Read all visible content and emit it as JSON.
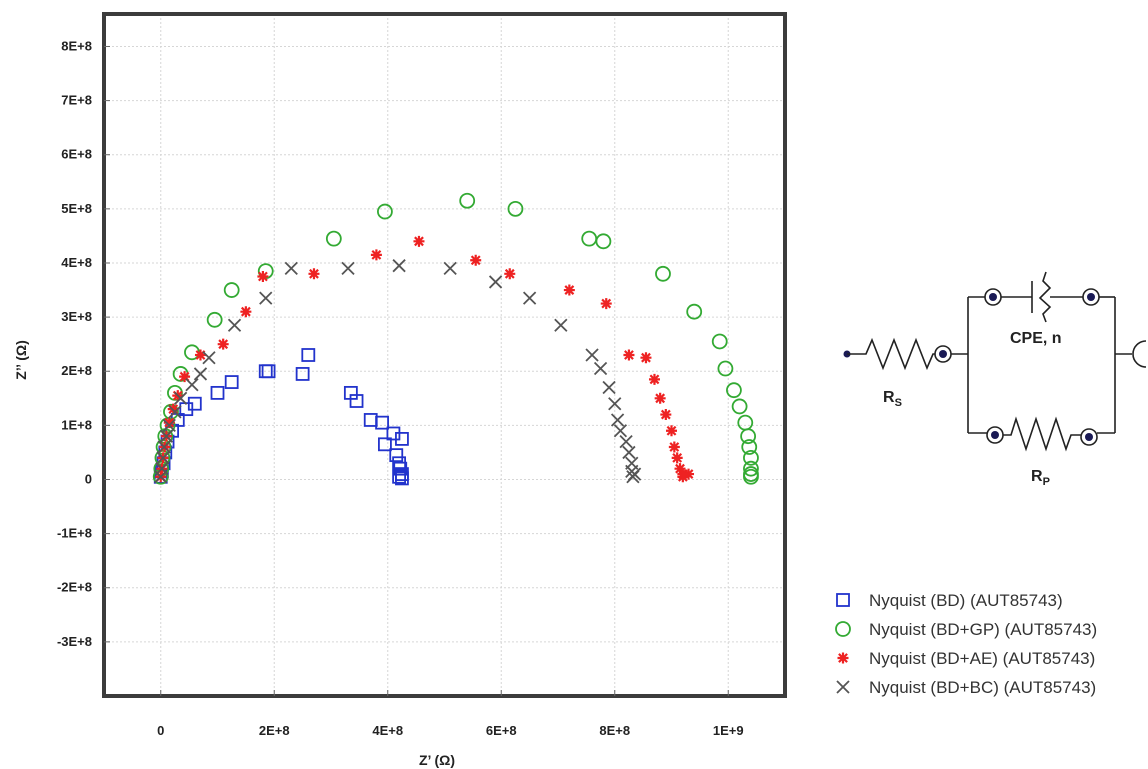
{
  "chart_data": {
    "type": "scatter",
    "xlabel": "Z’ (Ω)",
    "ylabel": "Z’’ (Ω)",
    "xlim": [
      -100000000.0,
      1100000000.0
    ],
    "ylim": [
      -400000000.0,
      860000000.0
    ],
    "x_ticks": [
      {
        "value": 0,
        "label": "0"
      },
      {
        "value": 200000000,
        "label": "2E+8"
      },
      {
        "value": 400000000,
        "label": "4E+8"
      },
      {
        "value": 600000000,
        "label": "6E+8"
      },
      {
        "value": 800000000,
        "label": "8E+8"
      },
      {
        "value": 1000000000,
        "label": "1E+9"
      }
    ],
    "y_ticks": [
      {
        "value": 800000000,
        "label": "8E+8"
      },
      {
        "value": 700000000,
        "label": "7E+8"
      },
      {
        "value": 600000000,
        "label": "6E+8"
      },
      {
        "value": 500000000,
        "label": "5E+8"
      },
      {
        "value": 400000000,
        "label": "4E+8"
      },
      {
        "value": 300000000,
        "label": "3E+8"
      },
      {
        "value": 200000000,
        "label": "2E+8"
      },
      {
        "value": 100000000,
        "label": "1E+8"
      },
      {
        "value": 0,
        "label": "0"
      },
      {
        "value": -100000000,
        "label": "-1E+8"
      },
      {
        "value": -200000000,
        "label": "-2E+8"
      },
      {
        "value": -300000000,
        "label": "-3E+8"
      }
    ],
    "grid": true,
    "legend_position": "bottom-right",
    "series": [
      {
        "name": "Nyquist (BD) (AUT85743)",
        "marker": "square",
        "color": "#2233cc",
        "points": [
          [
            0,
            5000000.0
          ],
          [
            2000000.0,
            15000000.0
          ],
          [
            5000000.0,
            30000000.0
          ],
          [
            8000000.0,
            50000000.0
          ],
          [
            12000000.0,
            70000000.0
          ],
          [
            20000000.0,
            90000000.0
          ],
          [
            30000000.0,
            110000000.0
          ],
          [
            45000000.0,
            130000000.0
          ],
          [
            60000000.0,
            140000000.0
          ],
          [
            100000000.0,
            160000000.0
          ],
          [
            125000000.0,
            180000000.0
          ],
          [
            190000000.0,
            200000000.0
          ],
          [
            185000000.0,
            200000000.0
          ],
          [
            250000000.0,
            195000000.0
          ],
          [
            260000000.0,
            230000000.0
          ],
          [
            335000000.0,
            160000000.0
          ],
          [
            345000000.0,
            145000000.0
          ],
          [
            370000000.0,
            110000000.0
          ],
          [
            390000000.0,
            105000000.0
          ],
          [
            410000000.0,
            85000000.0
          ],
          [
            425000000.0,
            75000000.0
          ],
          [
            395000000.0,
            65000000.0
          ],
          [
            415000000.0,
            45000000.0
          ],
          [
            420000000.0,
            30000000.0
          ],
          [
            422000000.0,
            20000000.0
          ],
          [
            425000000.0,
            10000000.0
          ],
          [
            420000000.0,
            5000000.0
          ],
          [
            425000000.0,
            2000000.0
          ]
        ]
      },
      {
        "name": "Nyquist (BD+GP) (AUT85743)",
        "marker": "circle",
        "color": "#33aa33",
        "points": [
          [
            0,
            5000000.0
          ],
          [
            1000000.0,
            20000000.0
          ],
          [
            3000000.0,
            40000000.0
          ],
          [
            5000000.0,
            60000000.0
          ],
          [
            8000000.0,
            80000000.0
          ],
          [
            12000000.0,
            100000000.0
          ],
          [
            18000000.0,
            125000000.0
          ],
          [
            25000000.0,
            160000000.0
          ],
          [
            35000000.0,
            195000000.0
          ],
          [
            55000000.0,
            235000000.0
          ],
          [
            95000000.0,
            295000000.0
          ],
          [
            125000000.0,
            350000000.0
          ],
          [
            185000000.0,
            385000000.0
          ],
          [
            305000000.0,
            445000000.0
          ],
          [
            395000000.0,
            495000000.0
          ],
          [
            540000000.0,
            515000000.0
          ],
          [
            625000000.0,
            500000000.0
          ],
          [
            755000000.0,
            445000000.0
          ],
          [
            780000000.0,
            440000000.0
          ],
          [
            885000000.0,
            380000000.0
          ],
          [
            940000000.0,
            310000000.0
          ],
          [
            985000000.0,
            255000000.0
          ],
          [
            995000000.0,
            205000000.0
          ],
          [
            1010000000.0,
            165000000.0
          ],
          [
            1020000000.0,
            135000000.0
          ],
          [
            1030000000.0,
            105000000.0
          ],
          [
            1035000000.0,
            80000000.0
          ],
          [
            1037000000.0,
            60000000.0
          ],
          [
            1040000000.0,
            40000000.0
          ],
          [
            1040000000.0,
            20000000.0
          ],
          [
            1040000000.0,
            10000000.0
          ],
          [
            1040000000.0,
            5000000.0
          ]
        ]
      },
      {
        "name": "Nyquist (BD+AE) (AUT85743)",
        "marker": "star",
        "color": "#ee2222",
        "points": [
          [
            0,
            5000000.0
          ],
          [
            2000000.0,
            20000000.0
          ],
          [
            4000000.0,
            40000000.0
          ],
          [
            7000000.0,
            60000000.0
          ],
          [
            10000000.0,
            80000000.0
          ],
          [
            15000000.0,
            105000000.0
          ],
          [
            22000000.0,
            130000000.0
          ],
          [
            30000000.0,
            155000000.0
          ],
          [
            42000000.0,
            190000000.0
          ],
          [
            70000000.0,
            230000000.0
          ],
          [
            110000000.0,
            250000000.0
          ],
          [
            150000000.0,
            310000000.0
          ],
          [
            180000000.0,
            375000000.0
          ],
          [
            270000000.0,
            380000000.0
          ],
          [
            380000000.0,
            415000000.0
          ],
          [
            455000000.0,
            440000000.0
          ],
          [
            555000000.0,
            405000000.0
          ],
          [
            615000000.0,
            380000000.0
          ],
          [
            720000000.0,
            350000000.0
          ],
          [
            785000000.0,
            325000000.0
          ],
          [
            825000000.0,
            230000000.0
          ],
          [
            855000000.0,
            225000000.0
          ],
          [
            870000000.0,
            185000000.0
          ],
          [
            880000000.0,
            150000000.0
          ],
          [
            890000000.0,
            120000000.0
          ],
          [
            900000000.0,
            90000000.0
          ],
          [
            905000000.0,
            60000000.0
          ],
          [
            910000000.0,
            40000000.0
          ],
          [
            915000000.0,
            20000000.0
          ],
          [
            920000000.0,
            10000000.0
          ],
          [
            920000000.0,
            5000000.0
          ],
          [
            930000000.0,
            10000000.0
          ]
        ]
      },
      {
        "name": "Nyquist (BD+BC) (AUT85743)",
        "marker": "cross",
        "color": "#555555",
        "points": [
          [
            0,
            5000000.0
          ],
          [
            2000000.0,
            20000000.0
          ],
          [
            4000000.0,
            40000000.0
          ],
          [
            6000000.0,
            60000000.0
          ],
          [
            10000000.0,
            80000000.0
          ],
          [
            15000000.0,
            100000000.0
          ],
          [
            25000000.0,
            125000000.0
          ],
          [
            35000000.0,
            150000000.0
          ],
          [
            55000000.0,
            175000000.0
          ],
          [
            70000000.0,
            195000000.0
          ],
          [
            85000000.0,
            225000000.0
          ],
          [
            130000000.0,
            285000000.0
          ],
          [
            185000000.0,
            335000000.0
          ],
          [
            230000000.0,
            390000000.0
          ],
          [
            330000000.0,
            390000000.0
          ],
          [
            420000000.0,
            395000000.0
          ],
          [
            510000000.0,
            390000000.0
          ],
          [
            590000000.0,
            365000000.0
          ],
          [
            650000000.0,
            335000000.0
          ],
          [
            705000000.0,
            285000000.0
          ],
          [
            760000000.0,
            230000000.0
          ],
          [
            775000000.0,
            205000000.0
          ],
          [
            790000000.0,
            170000000.0
          ],
          [
            800000000.0,
            140000000.0
          ],
          [
            805000000.0,
            110000000.0
          ],
          [
            810000000.0,
            90000000.0
          ],
          [
            820000000.0,
            70000000.0
          ],
          [
            825000000.0,
            50000000.0
          ],
          [
            830000000.0,
            30000000.0
          ],
          [
            830000000.0,
            15000000.0
          ],
          [
            832000000.0,
            5000000.0
          ],
          [
            835000000.0,
            10000000.0
          ]
        ]
      }
    ]
  },
  "circuit": {
    "rs_main": "R",
    "rs_sub": "S",
    "cpe_label": "CPE, n",
    "rp_main": "R",
    "rp_sub": "P"
  }
}
